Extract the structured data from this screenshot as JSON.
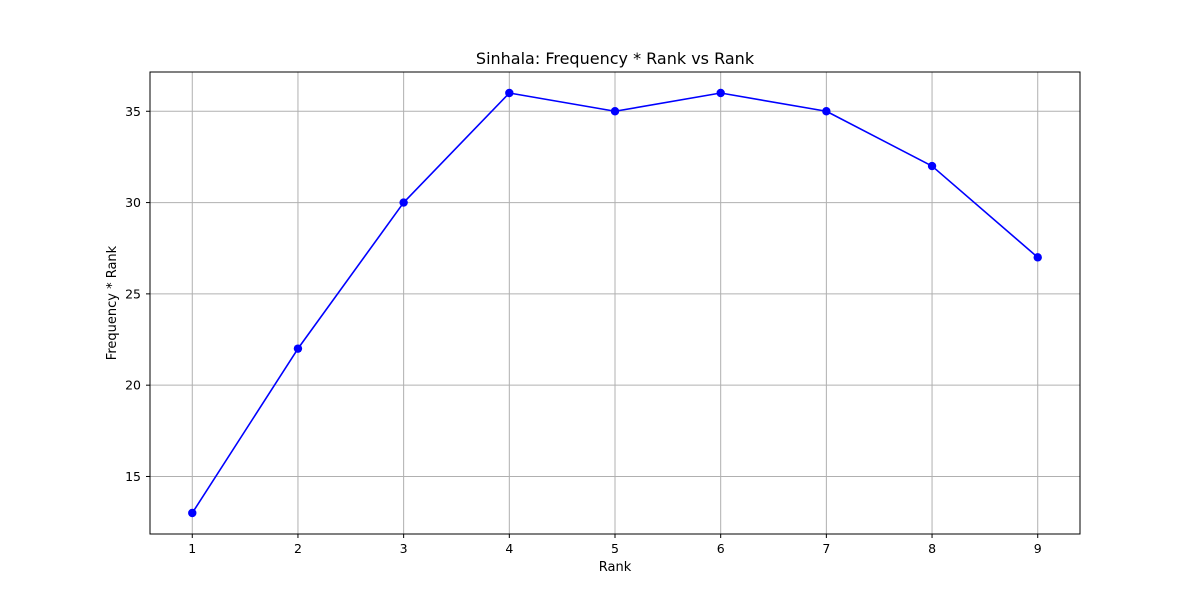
{
  "chart_data": {
    "type": "line",
    "title": "Sinhala: Frequency * Rank vs Rank",
    "xlabel": "Rank",
    "ylabel": "Frequency * Rank",
    "x": [
      1,
      2,
      3,
      4,
      5,
      6,
      7,
      8,
      9
    ],
    "series": [
      {
        "values": [
          13,
          22,
          30,
          36,
          35,
          36,
          35,
          32,
          27
        ],
        "color": "#0000ff",
        "marker": "circle"
      }
    ],
    "xlim": [
      0.6,
      9.4
    ],
    "ylim": [
      11.85,
      37.15
    ],
    "xticks": [
      1,
      2,
      3,
      4,
      5,
      6,
      7,
      8,
      9
    ],
    "yticks": [
      15,
      20,
      25,
      30,
      35
    ],
    "grid": true,
    "colors": {
      "line": "#0000ff",
      "grid": "#b0b0b0",
      "axis": "#000000"
    }
  }
}
